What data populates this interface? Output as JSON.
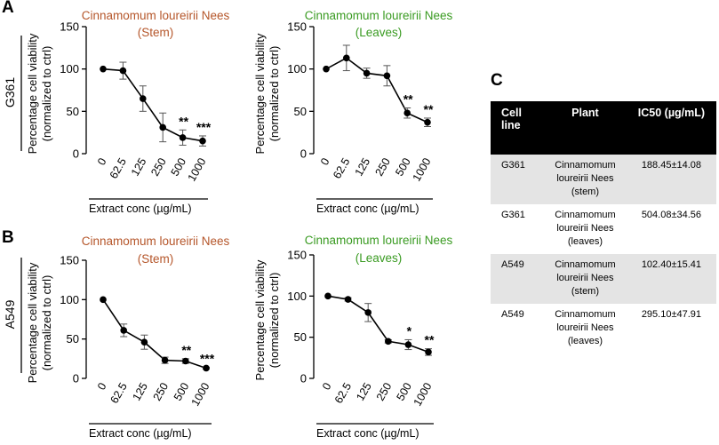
{
  "panels": {
    "a": "A",
    "b": "B",
    "c": "C"
  },
  "rows": {
    "top": "G361",
    "bottom": "A549"
  },
  "colors": {
    "stem": "#b5562a",
    "leaves": "#3a9b22",
    "line": "#000000"
  },
  "chart_data": [
    {
      "id": "A-stem",
      "type": "line",
      "cell_line": "G361",
      "color": "#b5562a",
      "title_line1": "Cinnamomum loureirii Nees",
      "title_line2": "(Stem)",
      "ylabel_line1": "Percentage cell viability",
      "ylabel_line2": "(normalized to ctrl)",
      "xlabel": "Extract conc (µg/mL)",
      "categories": [
        "0",
        "62.5",
        "125",
        "250",
        "500",
        "1000"
      ],
      "values": [
        100,
        98,
        65,
        31,
        19,
        15
      ],
      "errors": [
        0,
        10,
        15,
        17,
        9,
        6
      ],
      "significance": [
        "",
        "",
        "",
        "",
        "**",
        "***"
      ],
      "ylim": [
        0,
        150
      ],
      "yticks": [
        0,
        50,
        100,
        150
      ]
    },
    {
      "id": "A-leaves",
      "type": "line",
      "cell_line": "G361",
      "color": "#3a9b22",
      "title_line1": "Cinnamomum loureirii Nees",
      "title_line2": "(Leaves)",
      "ylabel_line1": "Percentage cell viability",
      "ylabel_line2": "(normalized to ctrl)",
      "xlabel": "Extract conc (µg/mL)",
      "categories": [
        "0",
        "62.5",
        "125",
        "250",
        "500",
        "1000"
      ],
      "values": [
        100,
        113,
        95,
        92,
        48,
        37
      ],
      "errors": [
        0,
        15,
        6,
        12,
        6,
        5
      ],
      "significance": [
        "",
        "",
        "",
        "",
        "**",
        "**"
      ],
      "ylim": [
        0,
        150
      ],
      "yticks": [
        0,
        50,
        100,
        150
      ]
    },
    {
      "id": "B-stem",
      "type": "line",
      "cell_line": "A549",
      "color": "#b5562a",
      "title_line1": "Cinnamomum loureirii Nees",
      "title_line2": "(Stem)",
      "ylabel_line1": "Percentage cell viability",
      "ylabel_line2": "(normalized to ctrl)",
      "xlabel": "Extract conc (µg/mL)",
      "categories": [
        "0",
        "62.5",
        "125",
        "250",
        "500",
        "1000"
      ],
      "values": [
        100,
        61,
        46,
        23,
        22,
        13
      ],
      "errors": [
        0,
        8,
        9,
        4,
        3,
        1
      ],
      "significance": [
        "",
        "",
        "",
        "",
        "**",
        "***"
      ],
      "ylim": [
        0,
        150
      ],
      "yticks": [
        0,
        50,
        100,
        150
      ]
    },
    {
      "id": "B-leaves",
      "type": "line",
      "cell_line": "A549",
      "color": "#3a9b22",
      "title_line1": "Cinnamomum loureirii Nees",
      "title_line2": "(Leaves)",
      "ylabel_line1": "Percentage cell viability",
      "ylabel_line2": "(normalized to ctrl)",
      "xlabel": "Extract conc (µg/mL)",
      "categories": [
        "0",
        "62.5",
        "125",
        "250",
        "500",
        "1000"
      ],
      "values": [
        100,
        96,
        80,
        45,
        41,
        32
      ],
      "errors": [
        0,
        2,
        11,
        2,
        6,
        4
      ],
      "significance": [
        "",
        "",
        "",
        "",
        "*",
        "**"
      ],
      "ylim": [
        0,
        150
      ],
      "yticks": [
        0,
        50,
        100,
        150
      ]
    }
  ],
  "table": {
    "headers": {
      "cell_line": "Cell line",
      "plant": "Plant",
      "ic50": "IC50 (µg/mL)"
    },
    "rows": [
      {
        "cell_line": "G361",
        "plant": "Cinnamomum\nloureirii Nees\n(stem)",
        "ic50": "188.45±14.08"
      },
      {
        "cell_line": "G361",
        "plant": "Cinnamomum\nloureirii Nees\n(leaves)",
        "ic50": "504.08±34.56"
      },
      {
        "cell_line": "A549",
        "plant": "Cinnamomum\nloureirii Nees\n(stem)",
        "ic50": "102.40±15.41"
      },
      {
        "cell_line": "A549",
        "plant": "Cinnamomum\nloureirii Nees\n(leaves)",
        "ic50": "295.10±47.91"
      }
    ]
  }
}
